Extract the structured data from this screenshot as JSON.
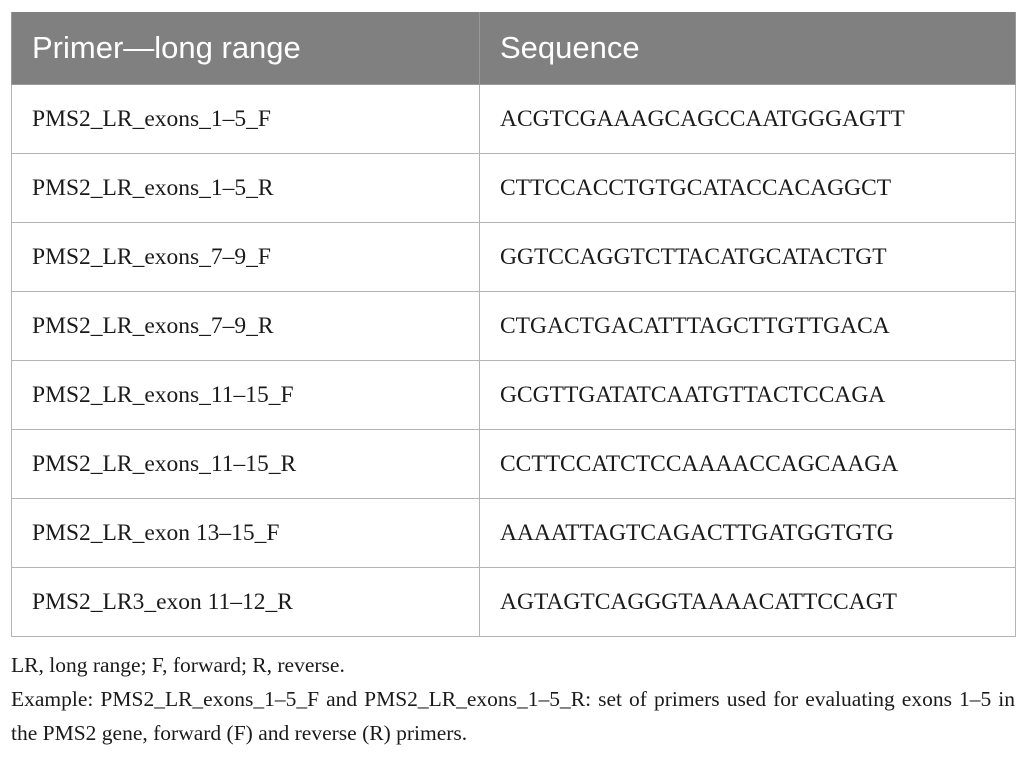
{
  "table": {
    "headers": [
      "Primer—long range",
      "Sequence"
    ],
    "rows": [
      {
        "primer": "PMS2_LR_exons_1–5_F",
        "sequence": "ACGTCGAAAGCAGCCAATGGGAGTT"
      },
      {
        "primer": "PMS2_LR_exons_1–5_R",
        "sequence": "CTTCCACCTGTGCATACCACAGGCT"
      },
      {
        "primer": "PMS2_LR_exons_7–9_F",
        "sequence": "GGTCCAGGTCTTACATGCATACTGT"
      },
      {
        "primer": "PMS2_LR_exons_7–9_R",
        "sequence": "CTGACTGACATTTAGCTTGTTGACA"
      },
      {
        "primer": "PMS2_LR_exons_11–15_F",
        "sequence": "GCGTTGATATCAATGTTACTCCAGA"
      },
      {
        "primer": "PMS2_LR_exons_11–15_R",
        "sequence": "CCTTCCATCTCCAAAACCAGCAAGA"
      },
      {
        "primer": "PMS2_LR_exon 13–15_F",
        "sequence": "AAAATTAGTCAGACTTGATGGTGTG"
      },
      {
        "primer": "PMS2_LR3_exon 11–12_R",
        "sequence": "AGTAGTCAGGGTAAAACATTCCAGT"
      }
    ]
  },
  "footnotes": {
    "abbreviations": "LR, long range; F, forward; R, reverse.",
    "example": "Example: PMS2_LR_exons_1–5_F and PMS2_LR_exons_1–5_R: set of primers used for evaluating exons 1–5 in the PMS2 gene, forward (F) and reverse (R) primers."
  }
}
